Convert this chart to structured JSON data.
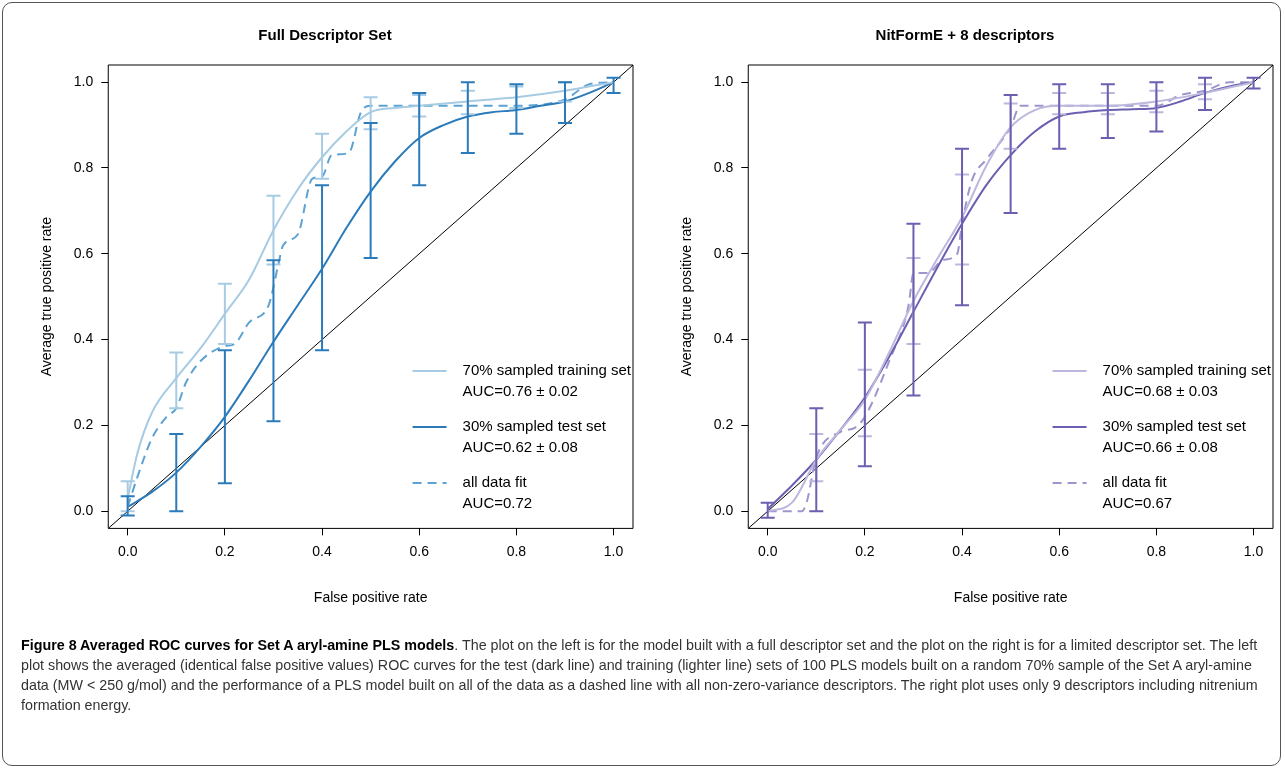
{
  "chart_data": [
    {
      "type": "line",
      "title": "Full Descriptor Set",
      "xlabel": "False positive rate",
      "ylabel": "Average true positive rate",
      "xlim": [
        -0.04,
        1.04
      ],
      "ylim": [
        -0.04,
        1.04
      ],
      "xticks": [
        {
          "value": 0,
          "label": "0.0"
        },
        {
          "value": 0.2,
          "label": "0.2"
        },
        {
          "value": 0.4,
          "label": "0.4"
        },
        {
          "value": 0.6,
          "label": "0.6"
        },
        {
          "value": 0.8,
          "label": "0.8"
        },
        {
          "value": 1,
          "label": "1.0"
        }
      ],
      "yticks": [
        {
          "value": 0,
          "label": "0.0"
        },
        {
          "value": 0.2,
          "label": "0.2"
        },
        {
          "value": 0.4,
          "label": "0.4"
        },
        {
          "value": 0.6,
          "label": "0.6"
        },
        {
          "value": 0.8,
          "label": "0.8"
        },
        {
          "value": 1,
          "label": "1.0"
        }
      ],
      "grid": false,
      "legend": "bottom right",
      "series": [
        {
          "name": "70% sampled training set\nAUC=0.76 ± 0.02",
          "color": "#a6cbe3",
          "line_style": "solid",
          "x": [
            0,
            0.02,
            0.05,
            0.1,
            0.15,
            0.2,
            0.25,
            0.3,
            0.35,
            0.4,
            0.45,
            0.5,
            0.55,
            0.6,
            0.7,
            0.8,
            0.9,
            1.0
          ],
          "values": [
            0.03,
            0.135,
            0.23,
            0.31,
            0.38,
            0.46,
            0.54,
            0.655,
            0.75,
            0.825,
            0.885,
            0.93,
            0.94,
            0.945,
            0.955,
            0.965,
            0.98,
            1.0
          ],
          "errors": [
            [
              0,
              0.07
            ],
            null,
            null,
            [
              0.24,
              0.37
            ],
            null,
            [
              0.39,
              0.53
            ],
            null,
            [
              0.575,
              0.735
            ],
            null,
            [
              0.775,
              0.88
            ],
            null,
            [
              0.89,
              0.965
            ],
            null,
            [
              0.92,
              0.97
            ],
            [
              0.925,
              0.98
            ],
            [
              0.94,
              0.99
            ],
            [
              0.955,
              1.0
            ],
            null
          ]
        },
        {
          "name": "30% sampled test set\nAUC=0.62 ± 0.08",
          "color": "#2b7bba",
          "line_style": "solid",
          "x": [
            0,
            0.05,
            0.1,
            0.15,
            0.2,
            0.25,
            0.3,
            0.35,
            0.4,
            0.45,
            0.5,
            0.55,
            0.6,
            0.65,
            0.7,
            0.75,
            0.8,
            0.85,
            0.9,
            0.95,
            1.0
          ],
          "values": [
            0.01,
            0.045,
            0.09,
            0.15,
            0.22,
            0.305,
            0.395,
            0.48,
            0.565,
            0.66,
            0.745,
            0.815,
            0.87,
            0.9,
            0.92,
            0.93,
            0.935,
            0.945,
            0.955,
            0.975,
            1.0
          ],
          "errors": [
            [
              -0.01,
              0.035
            ],
            null,
            [
              0,
              0.18
            ],
            null,
            [
              0.065,
              0.375
            ],
            null,
            [
              0.21,
              0.585
            ],
            null,
            [
              0.375,
              0.76
            ],
            null,
            [
              0.59,
              0.905
            ],
            null,
            [
              0.76,
              0.975
            ],
            null,
            [
              0.835,
              1.0
            ],
            null,
            [
              0.88,
              0.995
            ],
            null,
            [
              0.905,
              1.0
            ],
            null,
            [
              0.975,
              1.01
            ]
          ]
        },
        {
          "name": "all data fit\nAUC=0.72",
          "color": "#5ca2d4",
          "line_style": "dashed",
          "x": [
            0,
            0.02,
            0.05,
            0.08,
            0.1,
            0.12,
            0.15,
            0.2,
            0.22,
            0.25,
            0.29,
            0.31,
            0.32,
            0.35,
            0.38,
            0.4,
            0.42,
            0.455,
            0.48,
            0.5,
            0.6,
            0.7,
            0.8,
            0.9,
            0.95,
            1.0
          ],
          "values": [
            0.01,
            0.08,
            0.17,
            0.22,
            0.24,
            0.3,
            0.35,
            0.385,
            0.39,
            0.44,
            0.48,
            0.575,
            0.62,
            0.645,
            0.775,
            0.78,
            0.83,
            0.835,
            0.93,
            0.945,
            0.945,
            0.945,
            0.945,
            0.96,
            0.995,
            1.0
          ]
        },
        {
          "color": "#000000",
          "line_style": "solid",
          "x": [
            -0.04,
            1.04
          ],
          "values": [
            -0.04,
            1.04
          ]
        }
      ],
      "annotations": [
        "Figure 8 Averaged ROC curves for Set A aryl-amine PLS models",
        ". The plot on the left is for the model built with a full descriptor set and the plot on the right is for a limited descriptor set. The left plot shows the averaged (identical false positive values) ROC curves for the test (dark line) and training (lighter line) sets of 100 PLS models built on a random 70% sample of the Set A aryl-amine data (MW < 250 g/mol) and the performance of a PLS model built on all of the data as a dashed line with all non-zero-variance descriptors. The right plot uses only 9 descriptors including nitrenium formation energy."
      ]
    },
    {
      "type": "line",
      "title": "NitFormE + 8 descriptors",
      "xlabel": "False positive rate",
      "ylabel": "Average true positive rate",
      "xlim": [
        -0.04,
        1.04
      ],
      "ylim": [
        -0.04,
        1.04
      ],
      "xticks": [
        {
          "value": 0,
          "label": "0.0"
        },
        {
          "value": 0.2,
          "label": "0.2"
        },
        {
          "value": 0.4,
          "label": "0.4"
        },
        {
          "value": 0.6,
          "label": "0.6"
        },
        {
          "value": 0.8,
          "label": "0.8"
        },
        {
          "value": 1,
          "label": "1.0"
        }
      ],
      "yticks": [
        {
          "value": 0,
          "label": "0.0"
        },
        {
          "value": 0.2,
          "label": "0.2"
        },
        {
          "value": 0.4,
          "label": "0.4"
        },
        {
          "value": 0.6,
          "label": "0.6"
        },
        {
          "value": 0.8,
          "label": "0.8"
        },
        {
          "value": 1,
          "label": "1.0"
        }
      ],
      "grid": false,
      "legend": "bottom right",
      "series": [
        {
          "name": "70% sampled training set\nAUC=0.68 ± 0.03",
          "color": "#bcb8dd",
          "line_style": "solid",
          "x": [
            0,
            0.05,
            0.1,
            0.15,
            0.2,
            0.25,
            0.3,
            0.35,
            0.4,
            0.45,
            0.5,
            0.55,
            0.6,
            0.7,
            0.8,
            0.9,
            1.0
          ],
          "values": [
            0,
            0.02,
            0.12,
            0.19,
            0.26,
            0.37,
            0.49,
            0.59,
            0.685,
            0.805,
            0.895,
            0.935,
            0.945,
            0.945,
            0.955,
            0.975,
            1.0
          ],
          "errors": [
            null,
            null,
            [
              0.07,
              0.18
            ],
            null,
            [
              0.175,
              0.33
            ],
            null,
            [
              0.39,
              0.59
            ],
            null,
            [
              0.575,
              0.785
            ],
            null,
            [
              0.845,
              0.95
            ],
            null,
            [
              0.925,
              0.975
            ],
            [
              0.925,
              0.975
            ],
            [
              0.93,
              0.98
            ],
            [
              0.96,
              0.995
            ],
            null
          ]
        },
        {
          "name": "30% sampled test set\nAUC=0.66 ± 0.08",
          "color": "#6a5fb0",
          "line_style": "solid",
          "x": [
            0,
            0.05,
            0.1,
            0.15,
            0.2,
            0.25,
            0.3,
            0.35,
            0.4,
            0.45,
            0.5,
            0.55,
            0.6,
            0.65,
            0.7,
            0.75,
            0.8,
            0.85,
            0.9,
            0.95,
            1.0
          ],
          "values": [
            0.005,
            0.06,
            0.12,
            0.19,
            0.265,
            0.36,
            0.465,
            0.57,
            0.67,
            0.76,
            0.83,
            0.885,
            0.92,
            0.93,
            0.935,
            0.937,
            0.94,
            0.955,
            0.975,
            0.99,
            1.0
          ],
          "errors": [
            [
              -0.015,
              0.02
            ],
            null,
            [
              0,
              0.24
            ],
            null,
            [
              0.105,
              0.44
            ],
            null,
            [
              0.27,
              0.67
            ],
            null,
            [
              0.48,
              0.845
            ],
            null,
            [
              0.695,
              0.97
            ],
            null,
            [
              0.845,
              0.995
            ],
            null,
            [
              0.87,
              0.995
            ],
            null,
            [
              0.885,
              1.0
            ],
            null,
            [
              0.935,
              1.01
            ],
            null,
            [
              0.985,
              1.01
            ]
          ]
        },
        {
          "name": "all data fit\nAUC=0.67",
          "color": "#9d96cc",
          "line_style": "dashed",
          "x": [
            0,
            0.07,
            0.08,
            0.1,
            0.15,
            0.18,
            0.2,
            0.25,
            0.29,
            0.3,
            0.33,
            0.36,
            0.39,
            0.4,
            0.42,
            0.45,
            0.5,
            0.52,
            0.6,
            0.7,
            0.8,
            0.85,
            0.9,
            0.95,
            1.0
          ],
          "values": [
            0,
            0,
            0.02,
            0.125,
            0.185,
            0.195,
            0.22,
            0.35,
            0.48,
            0.555,
            0.555,
            0.585,
            0.6,
            0.67,
            0.77,
            0.82,
            0.895,
            0.945,
            0.945,
            0.945,
            0.945,
            0.97,
            0.98,
            1.0,
            1.0
          ]
        },
        {
          "color": "#000000",
          "line_style": "solid",
          "x": [
            -0.04,
            1.04
          ],
          "values": [
            -0.04,
            1.04
          ]
        }
      ]
    }
  ]
}
